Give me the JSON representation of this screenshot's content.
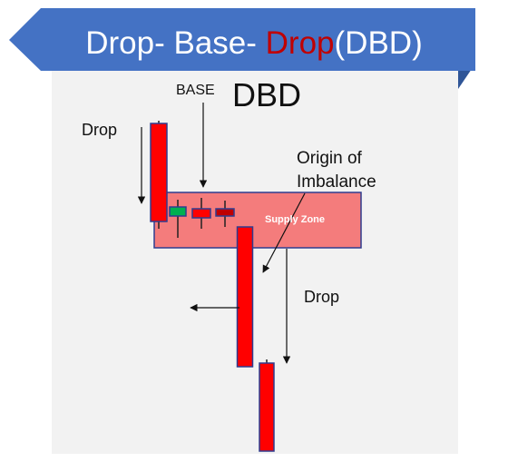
{
  "title": {
    "part1": "Drop- Base- ",
    "part2": "Drop",
    "part3": "(DBD)",
    "colors": {
      "banner": "#4472c4",
      "banner_dark": "#2f5597",
      "text": "#ffffff",
      "highlight": "#c00000"
    }
  },
  "diagram": {
    "heading": "DBD",
    "base_label": "BASE",
    "drop_left_label": "Drop",
    "origin_label_line1": "Origin of",
    "origin_label_line2": "Imbalance",
    "drop_right_label": "Drop",
    "supply_zone_label": "Supply Zone",
    "colors": {
      "panel": "#f2f2f2",
      "zone_fill": "#f47c7c",
      "zone_border": "#2f3c8f",
      "bear_candle": "#ff0000",
      "bull_candle": "#00b050",
      "dark_candle": "#c00000",
      "candle_border": "#2f3c8f"
    }
  }
}
